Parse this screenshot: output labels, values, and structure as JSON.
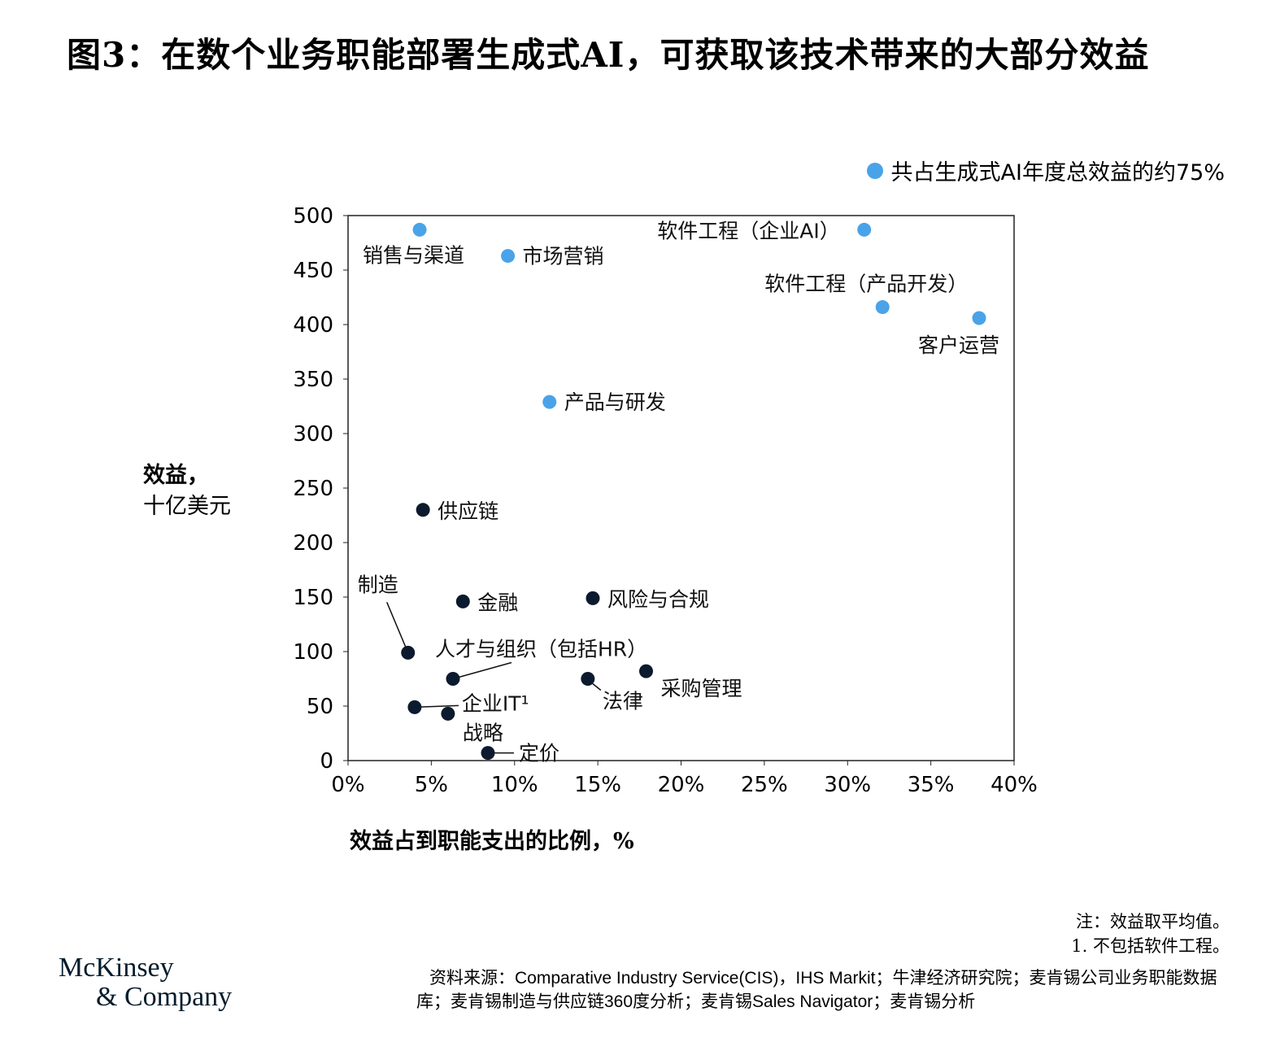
{
  "title": "图3：在数个业务职能部署生成式AI，可获取该技术带来的大部分效益",
  "legend": {
    "label": "共占生成式AI年度总效益的约75%",
    "color": "#4aa3e8"
  },
  "chart_data": {
    "type": "scatter",
    "xlabel": "效益占到职能支出的比例，%",
    "ylabel_line1": "效益，",
    "ylabel_line2": "十亿美元",
    "xlim": [
      0,
      40
    ],
    "ylim": [
      0,
      500
    ],
    "xticks": [
      "0%",
      "5%",
      "10%",
      "15%",
      "20%",
      "25%",
      "30%",
      "35%",
      "40%"
    ],
    "yticks": [
      "0",
      "50",
      "100",
      "150",
      "200",
      "250",
      "300",
      "350",
      "400",
      "450",
      "500"
    ],
    "colors": {
      "highlight": "#4aa3e8",
      "other": "#0b1a2e"
    },
    "points": [
      {
        "label": "销售与渠道",
        "x": 4.3,
        "y": 487,
        "highlight": true
      },
      {
        "label": "市场营销",
        "x": 9.6,
        "y": 463,
        "highlight": true
      },
      {
        "label": "软件工程（企业AI）",
        "x": 31.0,
        "y": 487,
        "highlight": true
      },
      {
        "label": "软件工程（产品开发）",
        "x": 32.1,
        "y": 416,
        "highlight": true
      },
      {
        "label": "客户运营",
        "x": 37.9,
        "y": 406,
        "highlight": true
      },
      {
        "label": "产品与研发",
        "x": 12.1,
        "y": 329,
        "highlight": true
      },
      {
        "label": "供应链",
        "x": 4.5,
        "y": 230,
        "highlight": false
      },
      {
        "label": "金融",
        "x": 6.9,
        "y": 146,
        "highlight": false
      },
      {
        "label": "风险与合规",
        "x": 14.7,
        "y": 149,
        "highlight": false
      },
      {
        "label": "制造",
        "x": 3.6,
        "y": 99,
        "highlight": false
      },
      {
        "label": "人才与组织（包括HR）",
        "x": 6.3,
        "y": 75,
        "highlight": false
      },
      {
        "label": "法律",
        "x": 14.4,
        "y": 75,
        "highlight": false
      },
      {
        "label": "采购管理",
        "x": 17.9,
        "y": 82,
        "highlight": false
      },
      {
        "label": "企业IT¹",
        "x": 4.0,
        "y": 49,
        "highlight": false
      },
      {
        "label": "战略",
        "x": 6.0,
        "y": 43,
        "highlight": false
      },
      {
        "label": "定价",
        "x": 8.4,
        "y": 7,
        "highlight": false
      }
    ]
  },
  "notes": {
    "line1": "注：效益取平均值。",
    "line2": "1. 不包括软件工程。"
  },
  "source": "资料来源：Comparative Industry Service(CIS)，IHS Markit；牛津经济研究院；麦肯锡公司业务职能数据库；麦肯锡制造与供应链360度分析；麦肯锡Sales Navigator；麦肯锡分析",
  "logo": {
    "line1": "McKinsey",
    "line2": "& Company"
  }
}
